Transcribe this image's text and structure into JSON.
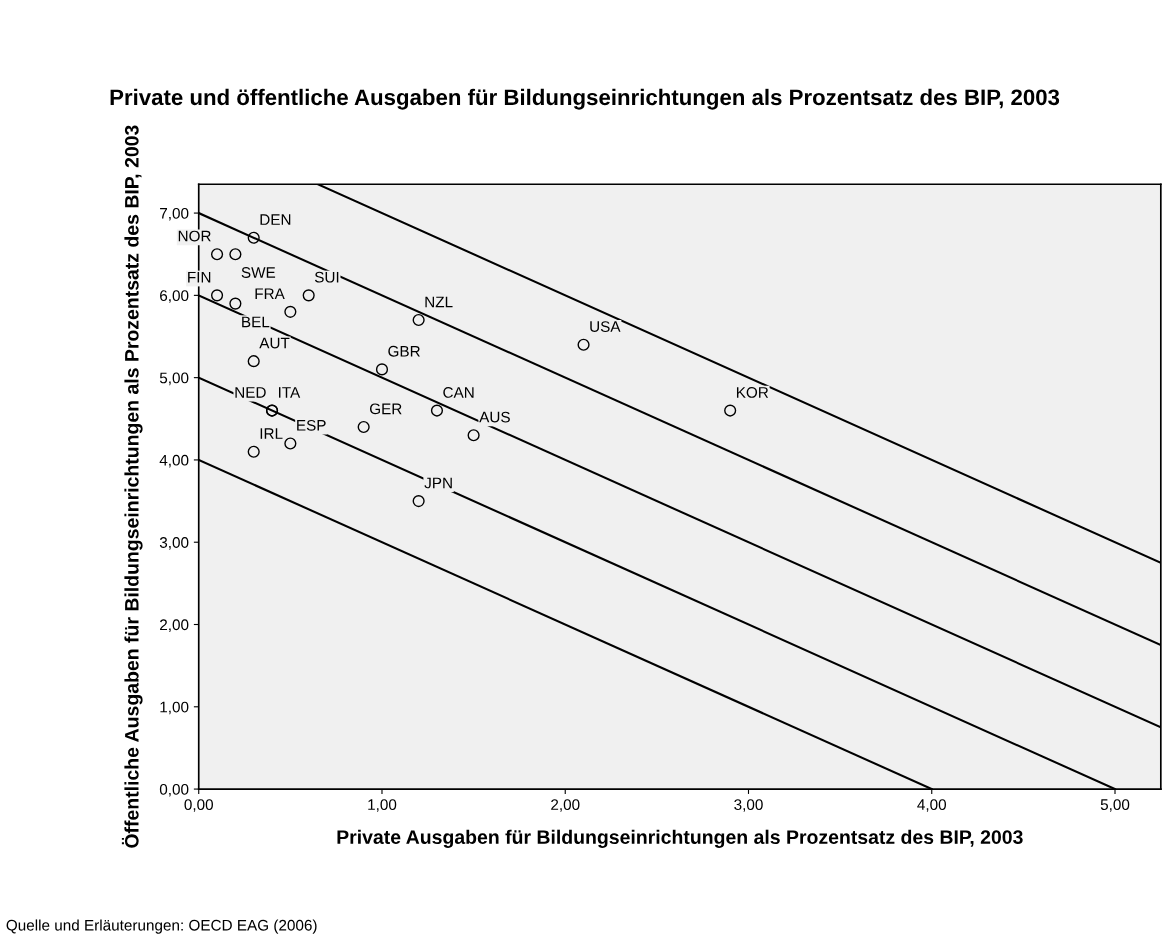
{
  "chart_data": {
    "type": "scatter",
    "title": "Private und öffentliche Ausgaben für Bildungseinrichtungen als Prozentsatz des BIP, 2003",
    "xlabel": "Private Ausgaben für Bildungseinrichtungen als Prozentsatz des BIP, 2003",
    "ylabel": "Öffentliche Ausgaben für Bildungseinrichtungen als Prozentsatz des BIP, 2003",
    "xlim": [
      0,
      5.25
    ],
    "ylim": [
      0,
      7.35
    ],
    "xticks": [
      {
        "value": 0,
        "label": "0,00"
      },
      {
        "value": 1,
        "label": "1,00"
      },
      {
        "value": 2,
        "label": "2,00"
      },
      {
        "value": 3,
        "label": "3,00"
      },
      {
        "value": 4,
        "label": "4,00"
      },
      {
        "value": 5,
        "label": "5,00"
      }
    ],
    "yticks": [
      {
        "value": 0,
        "label": "0,00"
      },
      {
        "value": 1,
        "label": "1,00"
      },
      {
        "value": 2,
        "label": "2,00"
      },
      {
        "value": 3,
        "label": "3,00"
      },
      {
        "value": 4,
        "label": "4,00"
      },
      {
        "value": 5,
        "label": "5,00"
      },
      {
        "value": 6,
        "label": "6,00"
      },
      {
        "value": 7,
        "label": "7,00"
      }
    ],
    "grid": false,
    "legend": false,
    "series": [
      {
        "marker": "circle",
        "color": "#000000",
        "x": [
          0.1,
          0.2,
          0.3,
          0.1,
          0.2,
          0.5,
          0.6,
          0.3,
          1.2,
          2.1,
          1.0,
          0.4,
          0.4,
          0.5,
          0.9,
          1.3,
          1.5,
          0.3,
          1.2,
          2.9
        ],
        "values": [
          6.5,
          6.5,
          6.7,
          6.0,
          5.9,
          5.8,
          6.0,
          5.2,
          5.7,
          5.4,
          5.1,
          4.6,
          4.6,
          4.2,
          4.4,
          4.6,
          4.3,
          4.1,
          3.5,
          4.6
        ]
      },
      {
        "type": "line",
        "color": "#000000",
        "x": [
          0.65,
          5.25
        ],
        "values": [
          7.35,
          2.75
        ]
      },
      {
        "type": "line",
        "color": "#000000",
        "x": [
          0,
          5.25
        ],
        "values": [
          7,
          1.75
        ]
      },
      {
        "type": "line",
        "color": "#000000",
        "x": [
          0,
          5.25
        ],
        "values": [
          6,
          0.75
        ]
      },
      {
        "type": "line",
        "color": "#000000",
        "x": [
          0,
          5
        ],
        "values": [
          5,
          0
        ]
      },
      {
        "type": "line",
        "color": "#000000",
        "x": [
          0,
          4
        ],
        "values": [
          4,
          0
        ]
      }
    ],
    "annotations": [
      {
        "text": "NOR",
        "x": 0.1,
        "y": 6.5
      },
      {
        "text": "SWE",
        "x": 0.2,
        "y": 6.5
      },
      {
        "text": "DEN",
        "x": 0.3,
        "y": 6.7
      },
      {
        "text": "FIN",
        "x": 0.1,
        "y": 6.0
      },
      {
        "text": "BEL",
        "x": 0.2,
        "y": 5.9
      },
      {
        "text": "FRA",
        "x": 0.5,
        "y": 5.8
      },
      {
        "text": "SUI",
        "x": 0.6,
        "y": 6.0
      },
      {
        "text": "AUT",
        "x": 0.3,
        "y": 5.2
      },
      {
        "text": "NZL",
        "x": 1.2,
        "y": 5.7
      },
      {
        "text": "USA",
        "x": 2.1,
        "y": 5.4
      },
      {
        "text": "GBR",
        "x": 1.0,
        "y": 5.1
      },
      {
        "text": "ITA",
        "x": 0.4,
        "y": 4.6
      },
      {
        "text": "NED",
        "x": 0.4,
        "y": 4.6
      },
      {
        "text": "ESP",
        "x": 0.5,
        "y": 4.2
      },
      {
        "text": "GER",
        "x": 0.9,
        "y": 4.4
      },
      {
        "text": "CAN",
        "x": 1.3,
        "y": 4.6
      },
      {
        "text": "AUS",
        "x": 1.5,
        "y": 4.3
      },
      {
        "text": "IRL",
        "x": 0.3,
        "y": 4.1
      },
      {
        "text": "JPN",
        "x": 1.2,
        "y": 3.5
      },
      {
        "text": "KOR",
        "x": 2.9,
        "y": 4.6
      },
      "Quelle und Erläuterungen: OECD EAG (2006)"
    ]
  }
}
